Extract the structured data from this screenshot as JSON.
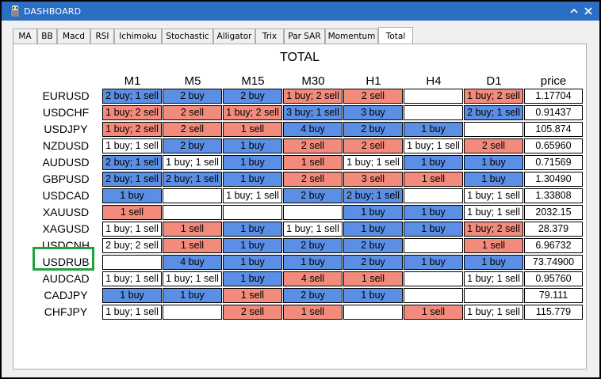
{
  "window": {
    "title": "DASHBOARD"
  },
  "tabs": [
    "MA",
    "BB",
    "Macd",
    "RSI",
    "Ichimoku",
    "Stochastic",
    "Alligator",
    "Trix",
    "Par SAR",
    "Momentum",
    "Total"
  ],
  "active_tab": "Total",
  "grid": {
    "title": "TOTAL",
    "columns": [
      "M1",
      "M5",
      "M15",
      "M30",
      "H1",
      "H4",
      "D1",
      "price"
    ],
    "rows": [
      {
        "pair": "EURUSD",
        "cells": [
          "2 buy; 1 sell",
          "2 buy",
          "2 buy",
          "1 buy; 2 sell",
          "2 sell",
          "",
          "1 buy; 2 sell"
        ],
        "price": "1.17704"
      },
      {
        "pair": "USDCHF",
        "cells": [
          "1 buy; 2 sell",
          "2 sell",
          "1 buy; 2 sell",
          "3 buy; 1 sell",
          "3 buy",
          "",
          "2 buy; 1 sell"
        ],
        "price": "0.91437"
      },
      {
        "pair": "USDJPY",
        "cells": [
          "1 buy; 2 sell",
          "2 sell",
          "1 sell",
          "4 buy",
          "2 buy",
          "1 buy",
          ""
        ],
        "price": "105.874"
      },
      {
        "pair": "NZDUSD",
        "cells": [
          "1 buy; 1 sell",
          "2 buy",
          "1 buy",
          "2 sell",
          "2 sell",
          "1 buy; 1 sell",
          "2 sell"
        ],
        "price": "0.65960"
      },
      {
        "pair": "AUDUSD",
        "cells": [
          "2 buy; 1 sell",
          "1 buy; 1 sell",
          "1 buy",
          "1 sell",
          "1 buy; 1 sell",
          "1 buy",
          "1 buy"
        ],
        "price": "0.71569"
      },
      {
        "pair": "GBPUSD",
        "cells": [
          "2 buy; 1 sell",
          "2 buy; 1 sell",
          "1 buy",
          "2 sell",
          "3 sell",
          "1 sell",
          "1 buy"
        ],
        "price": "1.30490"
      },
      {
        "pair": "USDCAD",
        "cells": [
          "1 buy",
          "",
          "1 buy; 1 sell",
          "2 buy",
          "2 buy; 1 sell",
          "",
          "1 buy; 1 sell"
        ],
        "price": "1.33808"
      },
      {
        "pair": "XAUUSD",
        "cells": [
          "1 sell",
          "",
          "",
          "",
          "1 buy",
          "1 buy",
          "1 buy; 1 sell"
        ],
        "price": "2032.15"
      },
      {
        "pair": "XAGUSD",
        "cells": [
          "1 buy; 1 sell",
          "1 sell",
          "1 buy",
          "1 buy; 1 sell",
          "1 buy",
          "1 buy",
          "1 buy; 2 sell"
        ],
        "price": "28.379"
      },
      {
        "pair": "USDCNH",
        "cells": [
          "2 buy; 2 sell",
          "1 sell",
          "1 buy",
          "2 buy",
          "2 buy",
          "",
          "1 sell"
        ],
        "price": "6.96732"
      },
      {
        "pair": "USDRUB",
        "cells": [
          "",
          "4 buy",
          "1 buy",
          "1 buy",
          "2 buy",
          "1 buy",
          "1 buy"
        ],
        "price": "73.74900"
      },
      {
        "pair": "AUDCAD",
        "cells": [
          "1 buy; 1 sell",
          "1 buy; 1 sell",
          "1 buy",
          "4 sell",
          "1 sell",
          "",
          "1 buy; 1 sell"
        ],
        "price": "0.95760"
      },
      {
        "pair": "CADJPY",
        "cells": [
          "1 buy",
          "1 buy",
          "1 sell",
          "2 buy",
          "1 buy",
          "",
          ""
        ],
        "price": "79.111"
      },
      {
        "pair": "CHFJPY",
        "cells": [
          "1 buy; 1 sell",
          "",
          "2 sell",
          "1 sell",
          "",
          "1 sell",
          "1 buy; 1 sell"
        ],
        "price": "115.779"
      }
    ]
  },
  "highlighted_pair": "USDRUB",
  "colors": {
    "buy": "#5b8fe6",
    "sell": "#f38b7c",
    "mixed": "#ffffff",
    "highlight": "#1ea23c",
    "titlebar": "#2b6fc5"
  }
}
